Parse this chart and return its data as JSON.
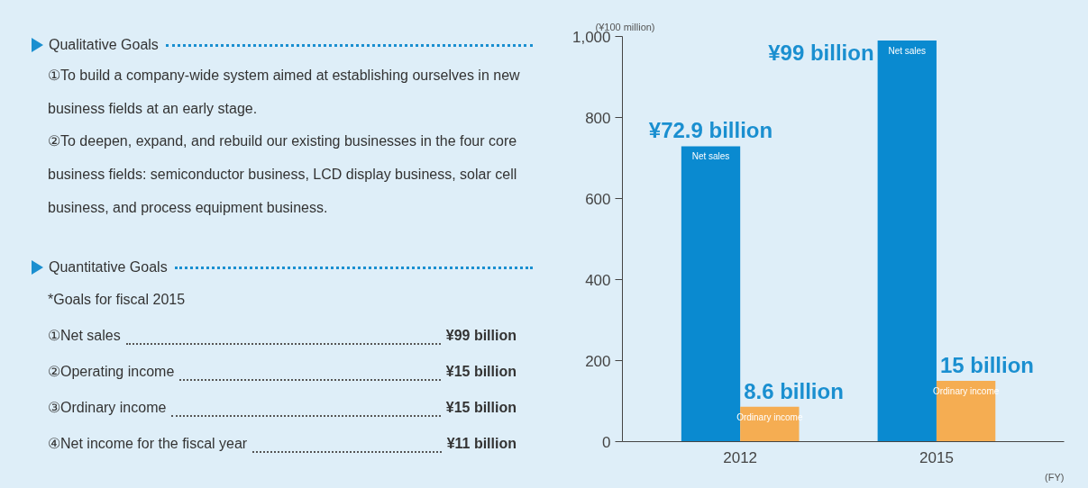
{
  "chart_data": {
    "type": "bar",
    "categories": [
      "2012",
      "2015"
    ],
    "series": [
      {
        "name": "Net sales",
        "color": "#0a8ad0",
        "values": [
          729,
          990
        ]
      },
      {
        "name": "Ordinary income",
        "color": "#f5ad52",
        "values": [
          86,
          150
        ]
      }
    ],
    "ylim": [
      0,
      1000
    ],
    "yticks": [
      0,
      200,
      400,
      600,
      800,
      {
        "value": 1000,
        "label": "1,000"
      }
    ],
    "ylabel": "(¥100 million)",
    "xlabel": "(FY)",
    "grid": false,
    "annotations": [
      "Qualitative Goals",
      "①To build a company-wide system aimed at establishing ourselves in new business fields at an early stage.",
      "②To deepen, expand, and rebuild our existing businesses in the four core business fields: semiconductor business, LCD display business, solar cell business, and process equipment business.",
      "Quantitative Goals",
      "*Goals for fiscal 2015",
      "①Net sales",
      "¥99 billion",
      "②Operating income",
      "¥15 billion",
      "③Ordinary income",
      "¥15 billion",
      "④Net income for the fiscal year",
      "¥11 billion",
      {
        "text": "¥72.9 billion",
        "x": "2012",
        "y": 729
      },
      {
        "text": "¥99 billion",
        "x": "2015",
        "y": 990
      },
      {
        "text": "8.6 billion",
        "x": "2012",
        "y": 86
      },
      {
        "text": "15 billion",
        "x": "2015",
        "y": 150
      }
    ]
  }
}
